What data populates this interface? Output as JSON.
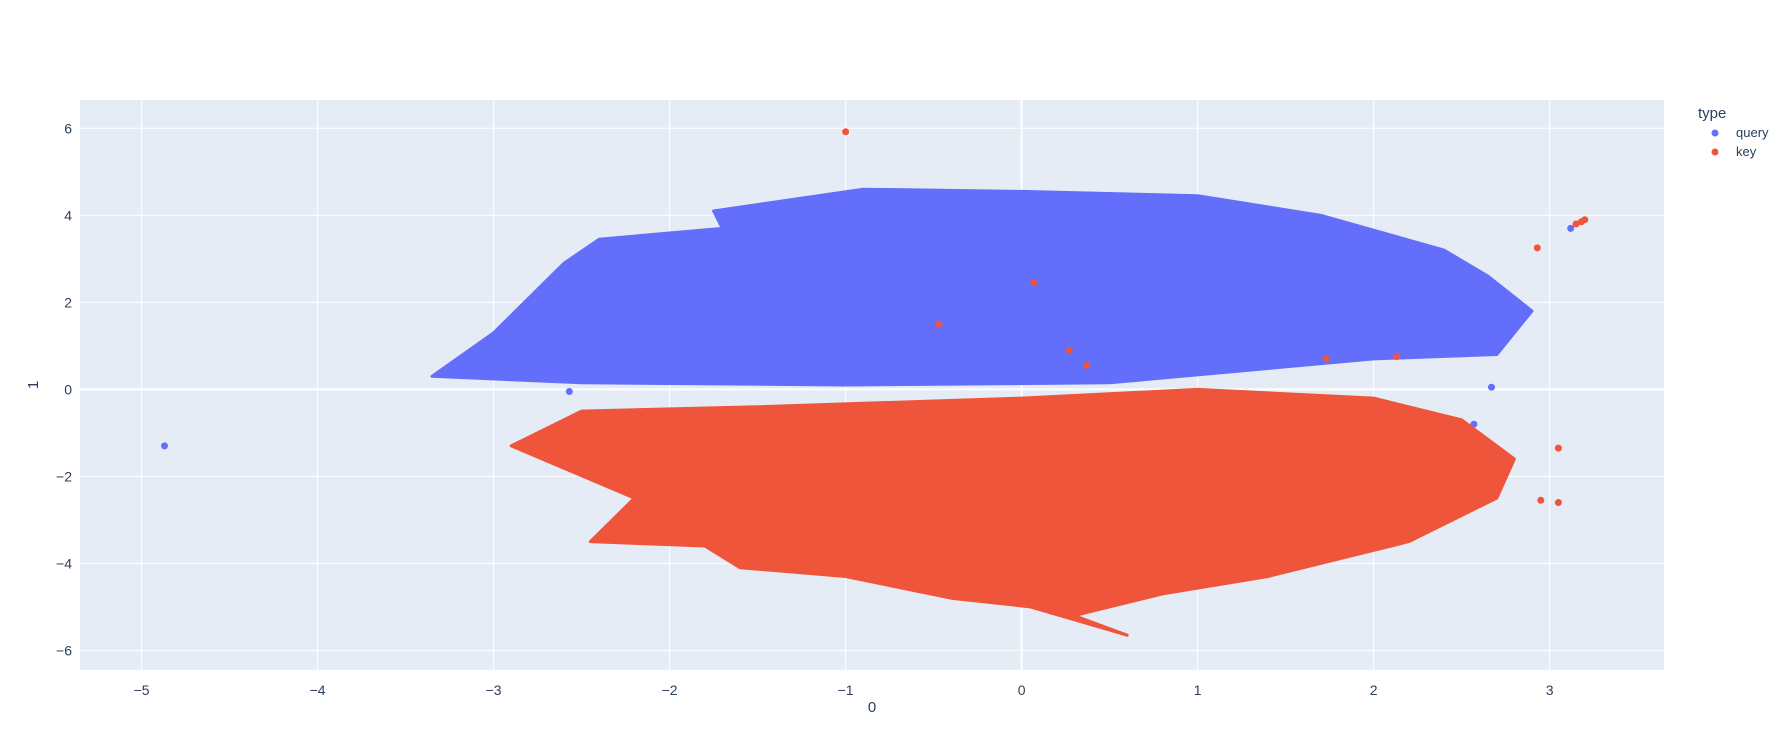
{
  "chart_data": {
    "type": "scatter",
    "xlabel": "0",
    "ylabel": "1",
    "xlim": [
      -5.35,
      3.65
    ],
    "ylim": [
      -6.45,
      6.65
    ],
    "x_ticks": [
      -5,
      -4,
      -3,
      -2,
      -1,
      0,
      1,
      2,
      3
    ],
    "x_tick_labels": [
      "−5",
      "−4",
      "−3",
      "−2",
      "−1",
      "0",
      "1",
      "2",
      "3"
    ],
    "y_ticks": [
      -6,
      -4,
      -2,
      0,
      2,
      4,
      6
    ],
    "y_tick_labels": [
      "−6",
      "−4",
      "−2",
      "0",
      "2",
      "4",
      "6"
    ],
    "grid": true,
    "legend": {
      "title": "type",
      "position": "right",
      "entries": [
        "query",
        "key"
      ]
    },
    "series": [
      {
        "name": "query",
        "color": "#636efa",
        "region_outline": [
          [
            -3.35,
            0.3
          ],
          [
            -3.0,
            1.3
          ],
          [
            -2.6,
            2.9
          ],
          [
            -2.4,
            3.45
          ],
          [
            -1.7,
            3.7
          ],
          [
            -1.75,
            4.1
          ],
          [
            -0.9,
            4.6
          ],
          [
            0,
            4.55
          ],
          [
            1.0,
            4.45
          ],
          [
            1.7,
            4.0
          ],
          [
            2.4,
            3.2
          ],
          [
            2.65,
            2.6
          ],
          [
            2.9,
            1.8
          ],
          [
            2.7,
            0.8
          ],
          [
            2.0,
            0.7
          ],
          [
            0.5,
            0.15
          ],
          [
            -1.0,
            0.1
          ],
          [
            -2.5,
            0.15
          ],
          [
            -3.35,
            0.3
          ]
        ],
        "outliers": [
          [
            -4.87,
            -1.3
          ],
          [
            3.12,
            3.7
          ],
          [
            2.57,
            -0.8
          ],
          [
            2.67,
            0.05
          ],
          [
            -2.57,
            -0.05
          ]
        ]
      },
      {
        "name": "key",
        "color": "#ef553b",
        "region_outline": [
          [
            -2.9,
            -1.3
          ],
          [
            -2.5,
            -0.5
          ],
          [
            -1.5,
            -0.4
          ],
          [
            0,
            -0.2
          ],
          [
            1.0,
            0.0
          ],
          [
            2.0,
            -0.2
          ],
          [
            2.5,
            -0.7
          ],
          [
            2.8,
            -1.6
          ],
          [
            2.7,
            -2.5
          ],
          [
            2.2,
            -3.5
          ],
          [
            1.4,
            -4.3
          ],
          [
            0.8,
            -4.7
          ],
          [
            0.3,
            -5.2
          ],
          [
            0.6,
            -5.65
          ],
          [
            0.05,
            -5.0
          ],
          [
            -0.4,
            -4.8
          ],
          [
            -1.0,
            -4.3
          ],
          [
            -1.6,
            -4.1
          ],
          [
            -1.8,
            -3.6
          ],
          [
            -2.45,
            -3.5
          ],
          [
            -2.2,
            -2.5
          ],
          [
            -2.9,
            -1.3
          ]
        ],
        "outliers": [
          [
            -1.0,
            5.92
          ],
          [
            3.15,
            3.8
          ],
          [
            3.18,
            3.85
          ],
          [
            3.2,
            3.9
          ],
          [
            2.93,
            3.25
          ],
          [
            0.07,
            2.45
          ],
          [
            -0.47,
            1.5
          ],
          [
            0.27,
            0.9
          ],
          [
            0.37,
            0.55
          ],
          [
            1.73,
            0.7
          ],
          [
            2.13,
            0.75
          ],
          [
            3.05,
            -1.35
          ],
          [
            2.95,
            -2.55
          ],
          [
            3.05,
            -2.6
          ]
        ]
      }
    ]
  }
}
